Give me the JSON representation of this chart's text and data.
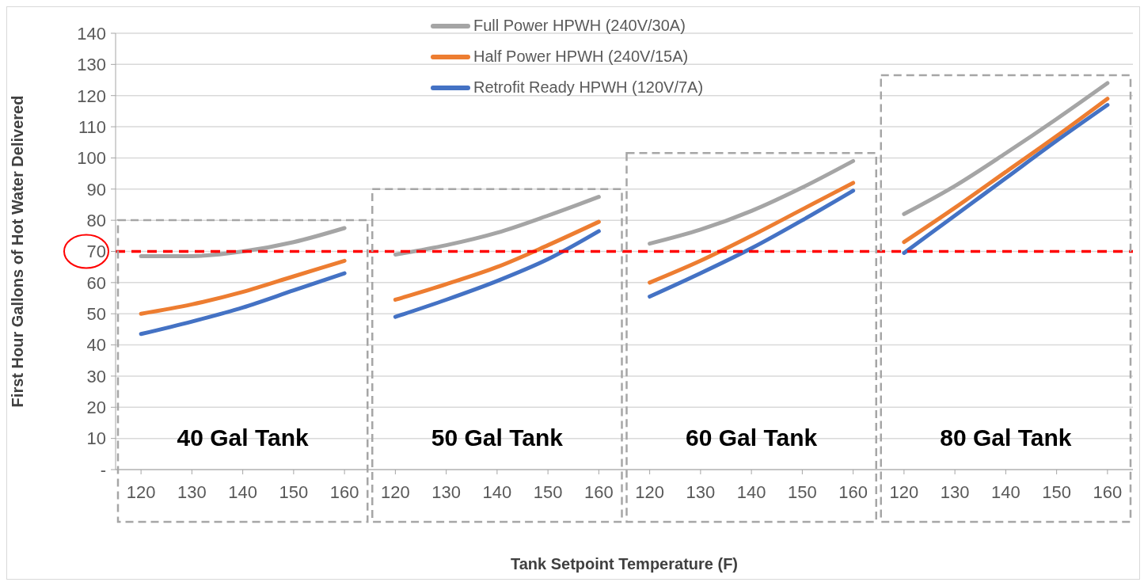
{
  "chart_data": {
    "type": "line",
    "xlabel": "Tank Setpoint Temperature (F)",
    "ylabel": "First Hour Gallons of Hot Water Delivered",
    "categories": [
      "120",
      "130",
      "140",
      "150",
      "160",
      "120",
      "130",
      "140",
      "150",
      "160",
      "120",
      "130",
      "140",
      "150",
      "160",
      "120",
      "130",
      "140",
      "150",
      "160"
    ],
    "series": [
      {
        "name": "Full Power HPWH (240V/30A)",
        "color": "#a5a5a5",
        "values": [
          68.5,
          68.5,
          70,
          73,
          77.5,
          69,
          72,
          76,
          81.5,
          87.5,
          72.5,
          77,
          83,
          90.5,
          99,
          82,
          91,
          101.5,
          112.5,
          124
        ]
      },
      {
        "name": "Half Power HPWH (240V/15A)",
        "color": "#ed7d31",
        "values": [
          50,
          53,
          57,
          62,
          67,
          54.5,
          59.5,
          65,
          72,
          79.5,
          60,
          67,
          75,
          83.5,
          92,
          73,
          84,
          95.5,
          107,
          119
        ]
      },
      {
        "name": "Retrofit Ready HPWH (120V/7A)",
        "color": "#4472c4",
        "values": [
          43.5,
          47.5,
          52,
          57.5,
          63,
          49,
          54.5,
          60.5,
          67.5,
          76.5,
          55.5,
          63,
          71,
          80,
          89.5,
          69.5,
          81.5,
          93.5,
          105.5,
          117
        ]
      }
    ],
    "annotations": [
      "40 Gal Tank",
      "50 Gal Tank",
      "60 Gal Tank",
      "80 Gal Tank"
    ],
    "ylim": [
      0,
      140
    ],
    "yticks": [
      {
        "value": 0,
        "label": "-"
      },
      10,
      20,
      30,
      40,
      50,
      60,
      70,
      80,
      90,
      100,
      110,
      120,
      130,
      140
    ],
    "ref_lines": [
      {
        "axis": "y",
        "value": 70,
        "color": "#ff0000",
        "line_style": "dashed"
      }
    ],
    "grid": "y",
    "legend": "top",
    "marker": "none",
    "line_style": "solid"
  }
}
